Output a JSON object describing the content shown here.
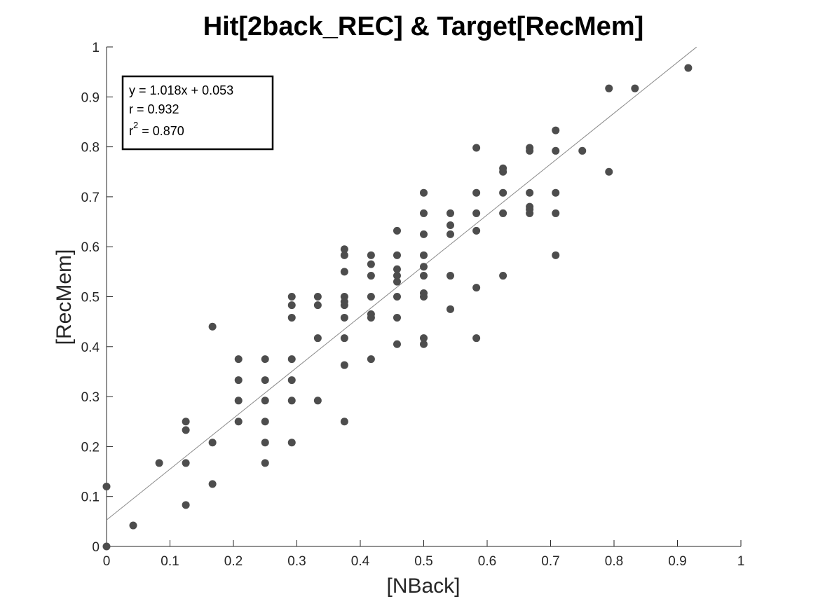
{
  "chart_data": {
    "type": "scatter",
    "title": "Hit[2back_REC] & Target[RecMem]",
    "xlabel": "[NBack]",
    "ylabel": "[RecMem]",
    "xlim": [
      0,
      1
    ],
    "ylim": [
      0,
      1
    ],
    "xticks": [
      0,
      0.1,
      0.2,
      0.3,
      0.4,
      0.5,
      0.6,
      0.7,
      0.8,
      0.9,
      1
    ],
    "yticks": [
      0,
      0.1,
      0.2,
      0.3,
      0.4,
      0.5,
      0.6,
      0.7,
      0.8,
      0.9,
      1
    ],
    "grid": false,
    "point_color": "#4d4d4d",
    "fit_line_color": "#8a8a8a",
    "fit": {
      "slope": 1.018,
      "intercept": 0.053,
      "x_range": [
        0,
        0.93
      ]
    },
    "stats": {
      "line1": "y = 1.018x + 0.053",
      "line2": "r = 0.932",
      "line3_prefix": "r",
      "line3_sup": "2",
      "line3_suffix": " = 0.870"
    },
    "points": [
      [
        0,
        0
      ],
      [
        0,
        0.12
      ],
      [
        0.042,
        0.042
      ],
      [
        0.083,
        0.167
      ],
      [
        0.125,
        0.083
      ],
      [
        0.125,
        0.167
      ],
      [
        0.125,
        0.233
      ],
      [
        0.125,
        0.25
      ],
      [
        0.167,
        0.125
      ],
      [
        0.167,
        0.208
      ],
      [
        0.167,
        0.44
      ],
      [
        0.208,
        0.25
      ],
      [
        0.208,
        0.292
      ],
      [
        0.208,
        0.333
      ],
      [
        0.208,
        0.375
      ],
      [
        0.25,
        0.167
      ],
      [
        0.25,
        0.208
      ],
      [
        0.25,
        0.25
      ],
      [
        0.25,
        0.292
      ],
      [
        0.25,
        0.333
      ],
      [
        0.25,
        0.375
      ],
      [
        0.292,
        0.208
      ],
      [
        0.292,
        0.292
      ],
      [
        0.292,
        0.333
      ],
      [
        0.292,
        0.375
      ],
      [
        0.292,
        0.458
      ],
      [
        0.292,
        0.483
      ],
      [
        0.292,
        0.5
      ],
      [
        0.333,
        0.292
      ],
      [
        0.333,
        0.417
      ],
      [
        0.333,
        0.483
      ],
      [
        0.333,
        0.5
      ],
      [
        0.375,
        0.25
      ],
      [
        0.375,
        0.363
      ],
      [
        0.375,
        0.417
      ],
      [
        0.375,
        0.458
      ],
      [
        0.375,
        0.483
      ],
      [
        0.375,
        0.49
      ],
      [
        0.375,
        0.5
      ],
      [
        0.375,
        0.55
      ],
      [
        0.375,
        0.583
      ],
      [
        0.375,
        0.595
      ],
      [
        0.417,
        0.375
      ],
      [
        0.417,
        0.458
      ],
      [
        0.417,
        0.465
      ],
      [
        0.417,
        0.5
      ],
      [
        0.417,
        0.542
      ],
      [
        0.417,
        0.565
      ],
      [
        0.417,
        0.583
      ],
      [
        0.458,
        0.405
      ],
      [
        0.458,
        0.458
      ],
      [
        0.458,
        0.5
      ],
      [
        0.458,
        0.53
      ],
      [
        0.458,
        0.542
      ],
      [
        0.458,
        0.555
      ],
      [
        0.458,
        0.583
      ],
      [
        0.458,
        0.632
      ],
      [
        0.5,
        0.405
      ],
      [
        0.5,
        0.417
      ],
      [
        0.5,
        0.5
      ],
      [
        0.5,
        0.507
      ],
      [
        0.5,
        0.542
      ],
      [
        0.5,
        0.56
      ],
      [
        0.5,
        0.583
      ],
      [
        0.5,
        0.625
      ],
      [
        0.5,
        0.667
      ],
      [
        0.5,
        0.708
      ],
      [
        0.542,
        0.475
      ],
      [
        0.542,
        0.542
      ],
      [
        0.542,
        0.625
      ],
      [
        0.542,
        0.643
      ],
      [
        0.542,
        0.667
      ],
      [
        0.583,
        0.417
      ],
      [
        0.583,
        0.518
      ],
      [
        0.583,
        0.632
      ],
      [
        0.583,
        0.667
      ],
      [
        0.583,
        0.708
      ],
      [
        0.583,
        0.798
      ],
      [
        0.625,
        0.542
      ],
      [
        0.625,
        0.667
      ],
      [
        0.625,
        0.708
      ],
      [
        0.625,
        0.75
      ],
      [
        0.625,
        0.757
      ],
      [
        0.667,
        0.667
      ],
      [
        0.667,
        0.675
      ],
      [
        0.667,
        0.68
      ],
      [
        0.667,
        0.708
      ],
      [
        0.667,
        0.792
      ],
      [
        0.667,
        0.798
      ],
      [
        0.708,
        0.583
      ],
      [
        0.708,
        0.667
      ],
      [
        0.708,
        0.708
      ],
      [
        0.708,
        0.792
      ],
      [
        0.708,
        0.833
      ],
      [
        0.75,
        0.792
      ],
      [
        0.792,
        0.75
      ],
      [
        0.792,
        0.917
      ],
      [
        0.833,
        0.917
      ],
      [
        0.917,
        0.958
      ]
    ]
  }
}
